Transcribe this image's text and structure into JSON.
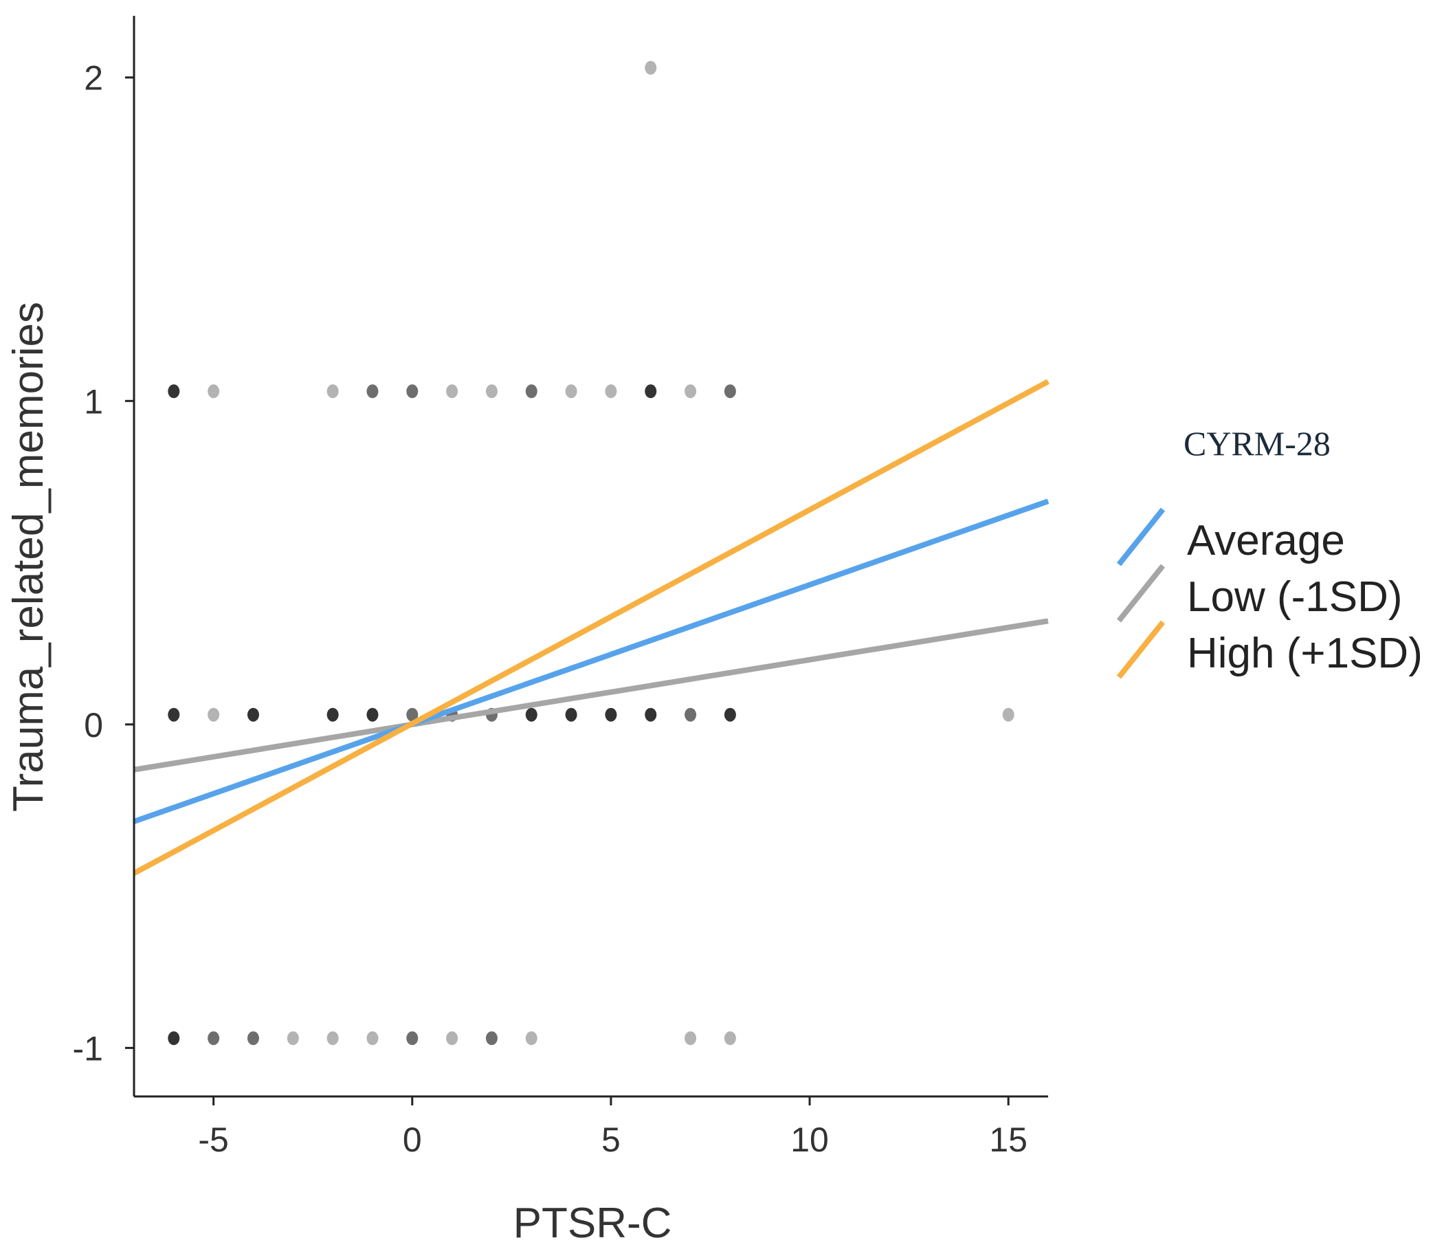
{
  "chart_data": {
    "type": "scatter",
    "title": "",
    "xlabel": "PTSR-C",
    "ylabel": "Trauma_related_memories",
    "xlim": [
      -7,
      16
    ],
    "ylim": [
      -1.15,
      2.18
    ],
    "x_ticks": [
      -5,
      0,
      5,
      10,
      15
    ],
    "x_tick_labels": [
      "-5",
      "0",
      "5",
      "10",
      "15"
    ],
    "y_ticks": [
      -1,
      0,
      1,
      2
    ],
    "y_tick_labels": [
      "-1",
      "0",
      "1",
      "2"
    ],
    "grid": false,
    "legend": {
      "title": "CYRM-28",
      "position": "right",
      "entries": [
        "Average",
        "Low (-1SD)",
        "High (+1SD)"
      ]
    },
    "points": [
      {
        "x": 6,
        "y": 2.03,
        "shade": "light"
      },
      {
        "x": -6,
        "y": 1.03,
        "shade": "dark"
      },
      {
        "x": -5,
        "y": 1.03,
        "shade": "light"
      },
      {
        "x": -2,
        "y": 1.03,
        "shade": "light"
      },
      {
        "x": -1,
        "y": 1.03,
        "shade": "mid"
      },
      {
        "x": 0,
        "y": 1.03,
        "shade": "mid"
      },
      {
        "x": 1,
        "y": 1.03,
        "shade": "light"
      },
      {
        "x": 2,
        "y": 1.03,
        "shade": "light"
      },
      {
        "x": 3,
        "y": 1.03,
        "shade": "mid"
      },
      {
        "x": 4,
        "y": 1.03,
        "shade": "light"
      },
      {
        "x": 5,
        "y": 1.03,
        "shade": "light"
      },
      {
        "x": 6,
        "y": 1.03,
        "shade": "dark"
      },
      {
        "x": 7,
        "y": 1.03,
        "shade": "light"
      },
      {
        "x": 8,
        "y": 1.03,
        "shade": "mid"
      },
      {
        "x": -6,
        "y": 0.03,
        "shade": "dark"
      },
      {
        "x": -5,
        "y": 0.03,
        "shade": "light"
      },
      {
        "x": -4,
        "y": 0.03,
        "shade": "dark"
      },
      {
        "x": -2,
        "y": 0.03,
        "shade": "dark"
      },
      {
        "x": -1,
        "y": 0.03,
        "shade": "dark"
      },
      {
        "x": 0,
        "y": 0.03,
        "shade": "mid"
      },
      {
        "x": 1,
        "y": 0.03,
        "shade": "mid"
      },
      {
        "x": 2,
        "y": 0.03,
        "shade": "mid"
      },
      {
        "x": 3,
        "y": 0.03,
        "shade": "dark"
      },
      {
        "x": 4,
        "y": 0.03,
        "shade": "dark"
      },
      {
        "x": 5,
        "y": 0.03,
        "shade": "dark"
      },
      {
        "x": 6,
        "y": 0.03,
        "shade": "dark"
      },
      {
        "x": 7,
        "y": 0.03,
        "shade": "mid"
      },
      {
        "x": 8,
        "y": 0.03,
        "shade": "dark"
      },
      {
        "x": 15,
        "y": 0.03,
        "shade": "light"
      },
      {
        "x": -6,
        "y": -0.97,
        "shade": "dark"
      },
      {
        "x": -5,
        "y": -0.97,
        "shade": "mid"
      },
      {
        "x": -4,
        "y": -0.97,
        "shade": "mid"
      },
      {
        "x": -3,
        "y": -0.97,
        "shade": "light"
      },
      {
        "x": -2,
        "y": -0.97,
        "shade": "light"
      },
      {
        "x": -1,
        "y": -0.97,
        "shade": "light"
      },
      {
        "x": 0,
        "y": -0.97,
        "shade": "mid"
      },
      {
        "x": 1,
        "y": -0.97,
        "shade": "light"
      },
      {
        "x": 2,
        "y": -0.97,
        "shade": "mid"
      },
      {
        "x": 3,
        "y": -0.97,
        "shade": "light"
      },
      {
        "x": 7,
        "y": -0.97,
        "shade": "light"
      },
      {
        "x": 8,
        "y": -0.97,
        "shade": "light"
      }
    ],
    "series": [
      {
        "name": "Low (-1SD)",
        "color": "#a6a6a6",
        "x": [
          -7,
          16
        ],
        "y": [
          -0.14,
          0.32
        ]
      },
      {
        "name": "Average",
        "color": "#57a3eb",
        "x": [
          -7,
          16
        ],
        "y": [
          -0.3,
          0.69
        ]
      },
      {
        "name": "High (+1SD)",
        "color": "#f7b041",
        "x": [
          -7,
          16
        ],
        "y": [
          -0.46,
          1.06
        ]
      }
    ],
    "shade_colors": {
      "dark": "#333333",
      "mid": "#6e6e6e",
      "light": "#b3b3b3"
    },
    "axis_color": "#222222"
  }
}
